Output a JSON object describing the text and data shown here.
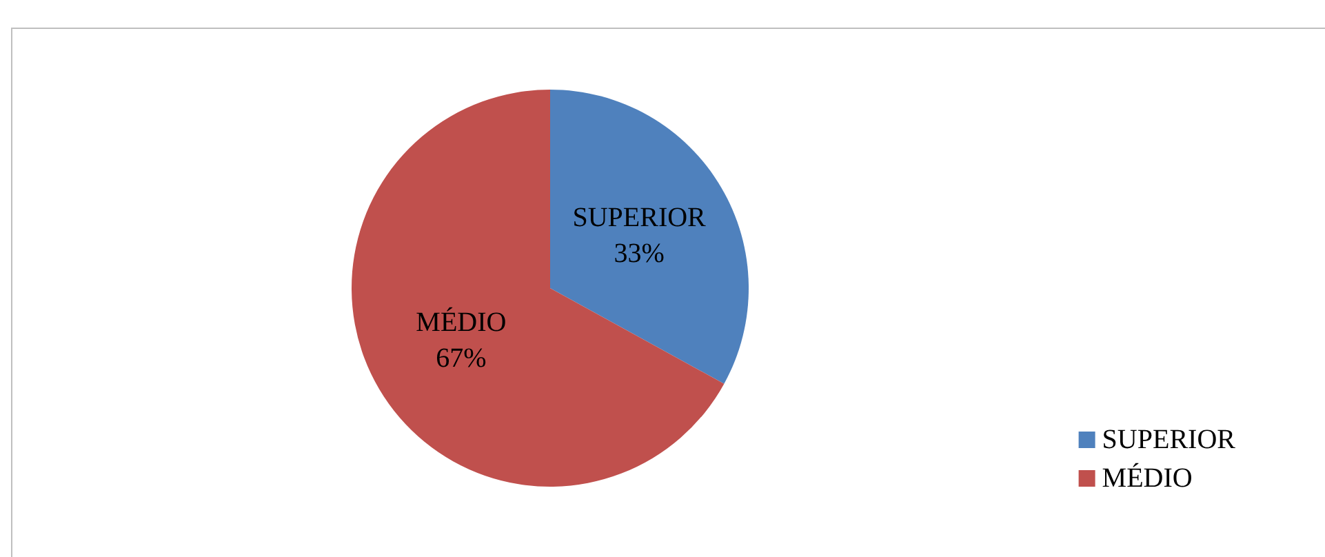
{
  "chart_data": {
    "type": "pie",
    "categories": [
      "SUPERIOR",
      "MÉDIO"
    ],
    "values": [
      33,
      67
    ],
    "colors": [
      "#4f81bd",
      "#c0504d"
    ],
    "value_labels": [
      "33%",
      "67%"
    ],
    "legend": "right"
  }
}
